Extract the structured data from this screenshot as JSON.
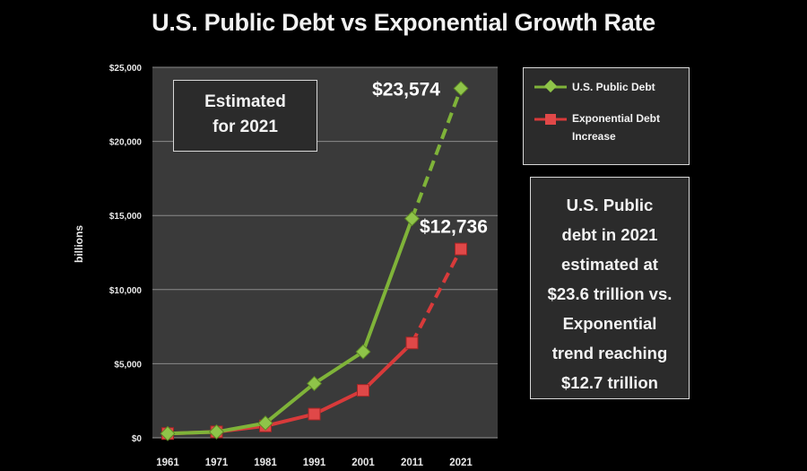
{
  "title": "U.S. Public Debt vs Exponential Growth Rate",
  "estimate_box": "Estimated\nfor 2021",
  "note_box": "U.S. Public\ndebt in 2021\nestimated at\n$23.6 trillion vs.\nExponential\ntrend reaching\n$12.7 trillion",
  "colors": {
    "debt": "#7fb339",
    "exponential": "#d83a3a",
    "plot_bg": "#3a3a3a"
  },
  "chart_data": {
    "type": "line",
    "title": "U.S. Public Debt vs Exponential Growth Rate",
    "xlabel": "",
    "ylabel": "billions",
    "x": [
      "1961",
      "1971",
      "1981",
      "1991",
      "2001",
      "2011",
      "2021"
    ],
    "ylim": [
      0,
      25000
    ],
    "yticks": [
      0,
      5000,
      10000,
      15000,
      20000,
      25000
    ],
    "ytick_labels": [
      "$0",
      "$5,000",
      "$10,000",
      "$15,000",
      "$20,000",
      "$25,000"
    ],
    "grid": true,
    "legend_position": "right",
    "series": [
      {
        "name": "U.S. Public Debt",
        "values": [
          289,
          398,
          995,
          3665,
          5807,
          14790,
          23574
        ],
        "dashed_last_segment": true
      },
      {
        "name": "Exponential Debt Increase",
        "values": [
          289,
          400,
          800,
          1600,
          3200,
          6400,
          12736
        ],
        "dashed_last_segment": true
      }
    ],
    "annotations": [
      "$23,574",
      "$12,736"
    ]
  }
}
